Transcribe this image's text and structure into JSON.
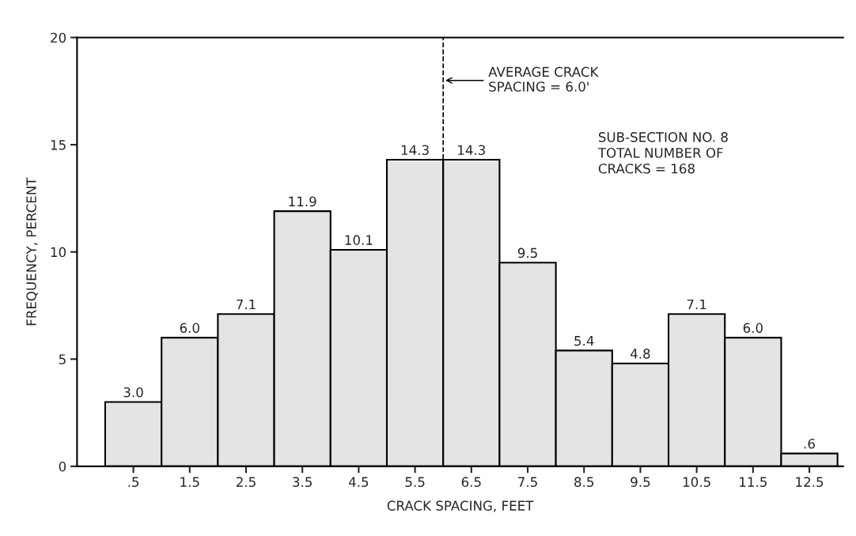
{
  "chart_data": {
    "type": "histogram",
    "xlabel": "CRACK SPACING, FEET",
    "ylabel": "FREQUENCY, PERCENT",
    "bins": [
      0,
      1,
      2,
      3,
      4,
      5,
      6,
      7,
      8,
      9,
      10,
      11,
      12,
      13
    ],
    "values": [
      3.0,
      6.0,
      7.1,
      11.9,
      10.1,
      14.3,
      14.3,
      9.5,
      5.4,
      4.8,
      7.1,
      6.0,
      0.6
    ],
    "value_labels": [
      "3.0",
      "6.0",
      "7.1",
      "11.9",
      "10.1",
      "14.3",
      "14.3",
      "9.5",
      "5.4",
      "4.8",
      "7.1",
      "6.0",
      ".6"
    ],
    "color": "#e4e4e4",
    "xlim": [
      -0.5,
      13.1
    ],
    "ylim": [
      0,
      20
    ],
    "xticks": [
      {
        "value": 0.5,
        "label": ".5"
      },
      1.5,
      2.5,
      3.5,
      4.5,
      5.5,
      6.5,
      7.5,
      8.5,
      9.5,
      10.5,
      11.5,
      12.5
    ],
    "yticks": [
      0,
      5,
      10,
      15,
      20
    ],
    "ref_lines": [
      {
        "axis": "x",
        "value": 6.0,
        "label": "AVERAGE CRACK\nSPACING = 6.0'",
        "line_style": "dashed",
        "color": "#000000"
      }
    ],
    "annotations": [
      "SUB-SECTION NO. 8\nTOTAL NUMBER OF\nCRACKS = 168"
    ],
    "grid": false
  }
}
